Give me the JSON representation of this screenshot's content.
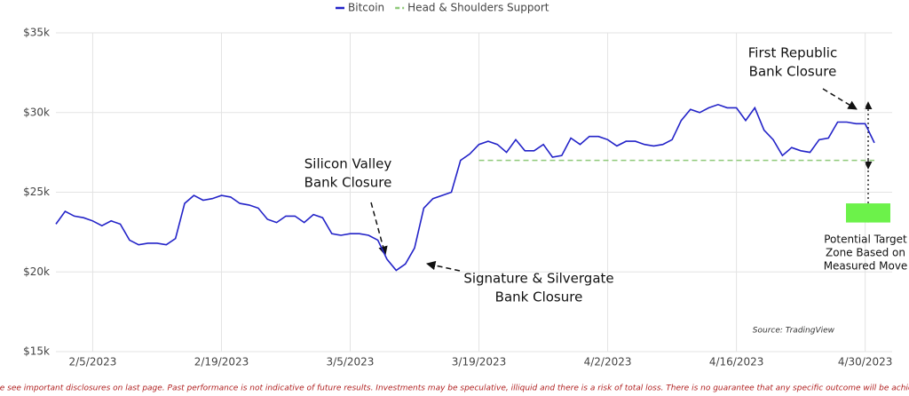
{
  "chart_data": {
    "type": "line",
    "series": [
      {
        "name": "Bitcoin",
        "color": "#2323c8",
        "values": [
          23000,
          23800,
          23500,
          23400,
          23200,
          22900,
          23200,
          23000,
          22000,
          21700,
          21800,
          21800,
          21700,
          22100,
          24300,
          24800,
          24500,
          24600,
          24800,
          24700,
          24300,
          24200,
          24000,
          23300,
          23100,
          23500,
          23500,
          23100,
          23600,
          23400,
          22400,
          22300,
          22400,
          22400,
          22300,
          22000,
          20800,
          20100,
          20500,
          21500,
          24000,
          24600,
          24800,
          25000,
          27000,
          27400,
          28000,
          28200,
          28000,
          27500,
          28300,
          27600,
          27600,
          28000,
          27200,
          27300,
          28400,
          28000,
          28500,
          28500,
          28300,
          27900,
          28200,
          28200,
          28000,
          27900,
          28000,
          28300,
          29500,
          30200,
          30000,
          30300,
          30500,
          30300,
          30300,
          29500,
          30300,
          28900,
          28300,
          27300,
          27800,
          27600,
          27500,
          28300,
          28400,
          29400,
          29400,
          29300,
          29300,
          28100
        ]
      },
      {
        "name": "Head & Shoulders Support",
        "color": "#8fca7a",
        "dashed": true,
        "x": [
          "3/19/2023",
          "5/1/2023"
        ],
        "values": [
          27000,
          27000
        ]
      }
    ],
    "x": [
      "2/1/2023",
      "2/2/2023",
      "2/3/2023",
      "2/4/2023",
      "2/5/2023",
      "2/6/2023",
      "2/7/2023",
      "2/8/2023",
      "2/9/2023",
      "2/10/2023",
      "2/11/2023",
      "2/12/2023",
      "2/13/2023",
      "2/14/2023",
      "2/15/2023",
      "2/16/2023",
      "2/17/2023",
      "2/18/2023",
      "2/19/2023",
      "2/20/2023",
      "2/21/2023",
      "2/22/2023",
      "2/23/2023",
      "2/24/2023",
      "2/25/2023",
      "2/26/2023",
      "2/27/2023",
      "2/28/2023",
      "3/1/2023",
      "3/2/2023",
      "3/3/2023",
      "3/4/2023",
      "3/5/2023",
      "3/6/2023",
      "3/7/2023",
      "3/8/2023",
      "3/9/2023",
      "3/10/2023",
      "3/11/2023",
      "3/12/2023",
      "3/13/2023",
      "3/14/2023",
      "3/15/2023",
      "3/16/2023",
      "3/17/2023",
      "3/18/2023",
      "3/19/2023",
      "3/20/2023",
      "3/21/2023",
      "3/22/2023",
      "3/23/2023",
      "3/24/2023",
      "3/25/2023",
      "3/26/2023",
      "3/27/2023",
      "3/28/2023",
      "3/29/2023",
      "3/30/2023",
      "3/31/2023",
      "4/1/2023",
      "4/2/2023",
      "4/3/2023",
      "4/4/2023",
      "4/5/2023",
      "4/6/2023",
      "4/7/2023",
      "4/8/2023",
      "4/9/2023",
      "4/10/2023",
      "4/11/2023",
      "4/12/2023",
      "4/13/2023",
      "4/14/2023",
      "4/15/2023",
      "4/16/2023",
      "4/17/2023",
      "4/18/2023",
      "4/19/2023",
      "4/20/2023",
      "4/21/2023",
      "4/22/2023",
      "4/23/2023",
      "4/24/2023",
      "4/25/2023",
      "4/26/2023",
      "4/27/2023",
      "4/28/2023",
      "4/29/2023",
      "4/30/2023",
      "5/1/2023"
    ],
    "xlim": [
      "2/1/2023",
      "5/1/2023"
    ],
    "xticks": [
      "2/5/2023",
      "2/19/2023",
      "3/5/2023",
      "3/19/2023",
      "4/2/2023",
      "4/16/2023",
      "4/30/2023"
    ],
    "ylim": [
      15000,
      35000
    ],
    "yticks": [
      {
        "value": 15000,
        "label": "$15k"
      },
      {
        "value": 20000,
        "label": "$20k"
      },
      {
        "value": 25000,
        "label": "$25k"
      },
      {
        "value": 30000,
        "label": "$30k"
      },
      {
        "value": 35000,
        "label": "$35k"
      }
    ],
    "grid": true,
    "legend": "top",
    "target_zone": {
      "color": "#6cf24a",
      "values": [
        23100,
        24300
      ]
    },
    "annotations": {
      "svb": [
        "Silicon Valley",
        "Bank Closure"
      ],
      "signature": [
        "Signature & Silvergate",
        "Bank Closure"
      ],
      "first_republic": [
        "First Republic",
        "Bank Closure"
      ],
      "target": [
        "Potential Target",
        "Zone Based on",
        "Measured Move"
      ]
    },
    "source": "Source: TradingView"
  },
  "footer": "Please see important disclosures on last page. Past performance is not indicative of future results. Investments may be speculative, illiquid and there is a risk of total loss. There is no guarantee that any specific outcome will be achieved."
}
